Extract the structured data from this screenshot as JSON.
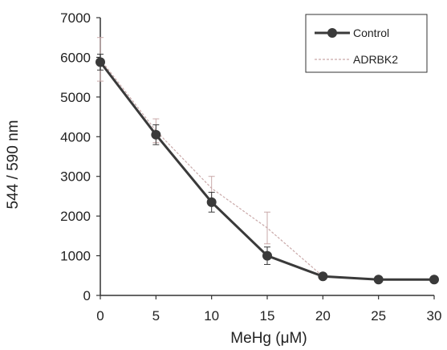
{
  "chart_data": {
    "type": "line",
    "xlabel": "MeHg (μM)",
    "ylabel": "544 / 590 nm",
    "x": [
      0,
      5,
      10,
      15,
      20,
      25,
      30
    ],
    "xlim": [
      0,
      30
    ],
    "ylim": [
      0,
      7000
    ],
    "x_ticks": [
      "0",
      "5",
      "10",
      "15",
      "20",
      "25",
      "30"
    ],
    "y_ticks": [
      "0",
      "1000",
      "2000",
      "3000",
      "4000",
      "5000",
      "6000",
      "7000"
    ],
    "grid": false,
    "legend_position": "top-right",
    "series": [
      {
        "name": "Control",
        "color": "#3a3a3a",
        "marker": "circle",
        "values": [
          5880,
          4050,
          2350,
          1000,
          480,
          400,
          400
        ],
        "error": [
          200,
          250,
          250,
          220,
          0,
          0,
          0
        ]
      },
      {
        "name": "ADRBK2",
        "color": "#c9a9a9",
        "marker": "none",
        "values": [
          5950,
          4150,
          2700,
          1700,
          480,
          400,
          400
        ],
        "error": [
          550,
          300,
          300,
          400,
          0,
          0,
          0
        ]
      }
    ]
  }
}
